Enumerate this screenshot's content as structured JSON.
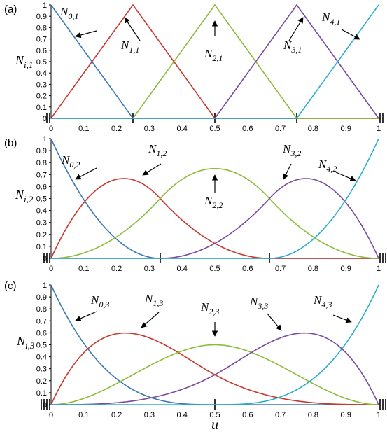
{
  "chart_data": [
    {
      "panel_label": "(a)",
      "type": "line",
      "ylabel": {
        "base": "N",
        "sub": "i,1"
      },
      "xlabel": null,
      "xlim": [
        0,
        1
      ],
      "ylim": [
        0,
        1
      ],
      "x_ticks": [
        "0",
        "0.1",
        "0.2",
        "0.3",
        "0.4",
        "0.5",
        "0.6",
        "0.7",
        "0.8",
        "0.9",
        "1"
      ],
      "y_ticks": [
        "0",
        "0.1",
        "0.2",
        "0.3",
        "0.4",
        "0.5",
        "0.6",
        "0.7",
        "0.8",
        "0.9",
        "1"
      ],
      "degree": 1,
      "knots": [
        0,
        0,
        0.25,
        0.5,
        0.75,
        1,
        1
      ],
      "series": [
        {
          "name": {
            "base": "N",
            "sub": "0,1"
          },
          "color": "#3a78b8"
        },
        {
          "name": {
            "base": "N",
            "sub": "1,1"
          },
          "color": "#c8382f"
        },
        {
          "name": {
            "base": "N",
            "sub": "2,1"
          },
          "color": "#8dbb3a"
        },
        {
          "name": {
            "base": "N",
            "sub": "3,1"
          },
          "color": "#7a4a9e"
        },
        {
          "name": {
            "base": "N",
            "sub": "4,1"
          },
          "color": "#2aaec9"
        }
      ],
      "grid": false
    },
    {
      "panel_label": "(b)",
      "type": "line",
      "ylabel": {
        "base": "N",
        "sub": "i,2"
      },
      "xlabel": null,
      "xlim": [
        0,
        1
      ],
      "ylim": [
        0,
        1
      ],
      "x_ticks": [
        "0",
        "0.1",
        "0.2",
        "0.3",
        "0.4",
        "0.5",
        "0.6",
        "0.7",
        "0.8",
        "0.9",
        "1"
      ],
      "y_ticks": [
        "0",
        "0.1",
        "0.2",
        "0.3",
        "0.4",
        "0.5",
        "0.6",
        "0.7",
        "0.8",
        "0.9",
        "1"
      ],
      "degree": 2,
      "knots": [
        0,
        0,
        0,
        0.3333,
        0.6667,
        1,
        1,
        1
      ],
      "series": [
        {
          "name": {
            "base": "N",
            "sub": "0,2"
          },
          "color": "#3a78b8"
        },
        {
          "name": {
            "base": "N",
            "sub": "1,2"
          },
          "color": "#c8382f"
        },
        {
          "name": {
            "base": "N",
            "sub": "2,2"
          },
          "color": "#8dbb3a"
        },
        {
          "name": {
            "base": "N",
            "sub": "3,2"
          },
          "color": "#7a4a9e"
        },
        {
          "name": {
            "base": "N",
            "sub": "4,2"
          },
          "color": "#2aaec9"
        }
      ],
      "grid": false
    },
    {
      "panel_label": "(c)",
      "type": "line",
      "ylabel": {
        "base": "N",
        "sub": "i,3"
      },
      "xlabel": "u",
      "xlim": [
        0,
        1
      ],
      "ylim": [
        0,
        1
      ],
      "x_ticks": [
        "0",
        "0.1",
        "0.2",
        "0.3",
        "0.4",
        "0.5",
        "0.6",
        "0.7",
        "0.8",
        "0.9",
        "1"
      ],
      "y_ticks": [
        "0",
        "0.1",
        "0.2",
        "0.3",
        "0.4",
        "0.5",
        "0.6",
        "0.7",
        "0.8",
        "0.9",
        "1"
      ],
      "degree": 3,
      "knots": [
        0,
        0,
        0,
        0,
        0.5,
        1,
        1,
        1,
        1
      ],
      "series": [
        {
          "name": {
            "base": "N",
            "sub": "0,3"
          },
          "color": "#3a78b8"
        },
        {
          "name": {
            "base": "N",
            "sub": "1,3"
          },
          "color": "#c8382f"
        },
        {
          "name": {
            "base": "N",
            "sub": "2,3"
          },
          "color": "#8dbb3a"
        },
        {
          "name": {
            "base": "N",
            "sub": "3,3"
          },
          "color": "#7a4a9e"
        },
        {
          "name": {
            "base": "N",
            "sub": "4,3"
          },
          "color": "#2aaec9"
        }
      ],
      "grid": false
    }
  ]
}
